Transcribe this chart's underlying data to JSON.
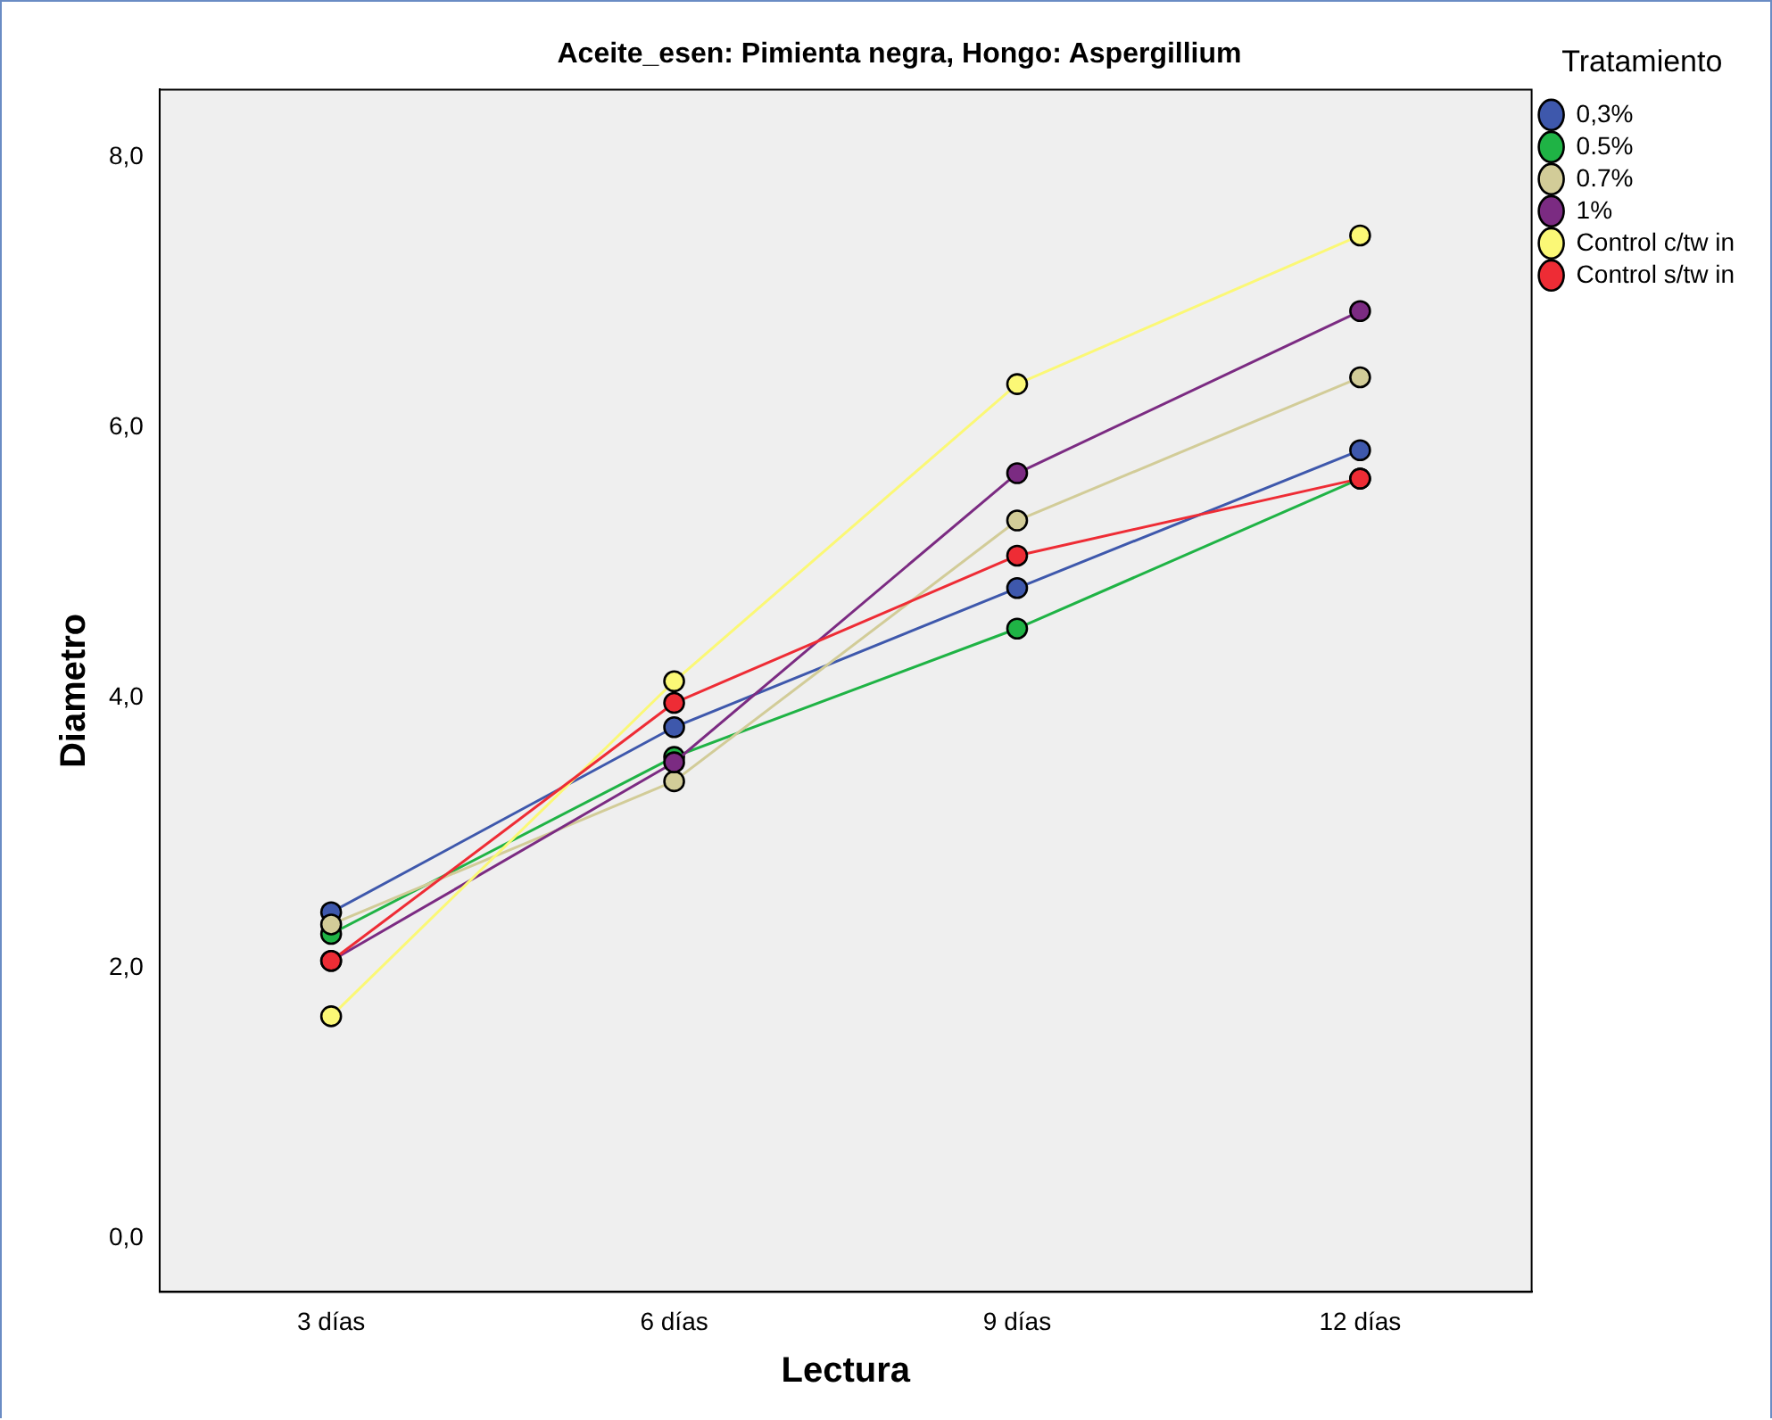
{
  "chart_data": {
    "type": "line",
    "title": "Aceite_esen: Pimienta negra, Hongo: Aspergillium",
    "xlabel": "Lectura",
    "ylabel": "Diametro",
    "legend_title": "Tratamiento",
    "categories": [
      "3 días",
      "6 días",
      "9 días",
      "12 días"
    ],
    "series": [
      {
        "name": "0,3%",
        "color": "#3e58ac",
        "values": [
          2.41,
          3.78,
          4.81,
          5.83
        ]
      },
      {
        "name": "0.5%",
        "color": "#1fb345",
        "values": [
          2.25,
          3.56,
          4.51,
          5.62
        ]
      },
      {
        "name": "0.7%",
        "color": "#d2cc98",
        "values": [
          2.32,
          3.38,
          5.31,
          6.37
        ]
      },
      {
        "name": "1%",
        "color": "#7b2b82",
        "values": [
          2.05,
          3.52,
          5.66,
          6.86
        ]
      },
      {
        "name": "Control c/tw in",
        "color": "#fbf876",
        "values": [
          1.64,
          4.12,
          6.32,
          7.42
        ]
      },
      {
        "name": "Control s/tw in",
        "color": "#ee2c35",
        "values": [
          2.05,
          3.96,
          5.05,
          5.62
        ]
      }
    ],
    "ylim": [
      -0.4,
      8.5
    ],
    "yticks": [
      {
        "value": 0,
        "label": "0,0"
      },
      {
        "value": 2,
        "label": "2,0"
      },
      {
        "value": 4,
        "label": "4,0"
      },
      {
        "value": 6,
        "label": "6,0"
      },
      {
        "value": 8,
        "label": "8,0"
      }
    ],
    "grid": false,
    "legend": "top right",
    "marker": "circle",
    "line_style": "solid"
  }
}
